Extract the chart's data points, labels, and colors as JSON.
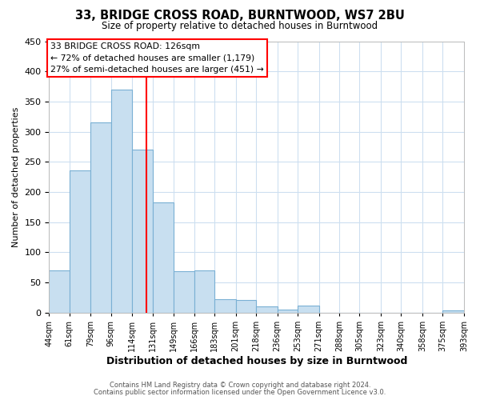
{
  "title": "33, BRIDGE CROSS ROAD, BURNTWOOD, WS7 2BU",
  "subtitle": "Size of property relative to detached houses in Burntwood",
  "xlabel": "Distribution of detached houses by size in Burntwood",
  "ylabel": "Number of detached properties",
  "bar_edges": [
    44,
    61,
    79,
    96,
    114,
    131,
    149,
    166,
    183,
    201,
    218,
    236,
    253,
    271,
    288,
    305,
    323,
    340,
    358,
    375,
    393
  ],
  "bar_heights": [
    70,
    235,
    315,
    370,
    270,
    183,
    68,
    70,
    22,
    20,
    10,
    5,
    12,
    0,
    0,
    0,
    0,
    0,
    0,
    3
  ],
  "bar_color": "#c8dff0",
  "bar_edgecolor": "#7ab0d4",
  "property_line_x": 126,
  "property_line_color": "red",
  "ylim": [
    0,
    450
  ],
  "annotation_line1": "33 BRIDGE CROSS ROAD: 126sqm",
  "annotation_line2": "← 72% of detached houses are smaller (1,179)",
  "annotation_line3": "27% of semi-detached houses are larger (451) →",
  "footnote1": "Contains HM Land Registry data © Crown copyright and database right 2024.",
  "footnote2": "Contains public sector information licensed under the Open Government Licence v3.0.",
  "tick_labels": [
    "44sqm",
    "61sqm",
    "79sqm",
    "96sqm",
    "114sqm",
    "131sqm",
    "149sqm",
    "166sqm",
    "183sqm",
    "201sqm",
    "218sqm",
    "236sqm",
    "253sqm",
    "271sqm",
    "288sqm",
    "305sqm",
    "323sqm",
    "340sqm",
    "358sqm",
    "375sqm",
    "393sqm"
  ],
  "background_color": "#ffffff",
  "grid_color": "#cddff0"
}
